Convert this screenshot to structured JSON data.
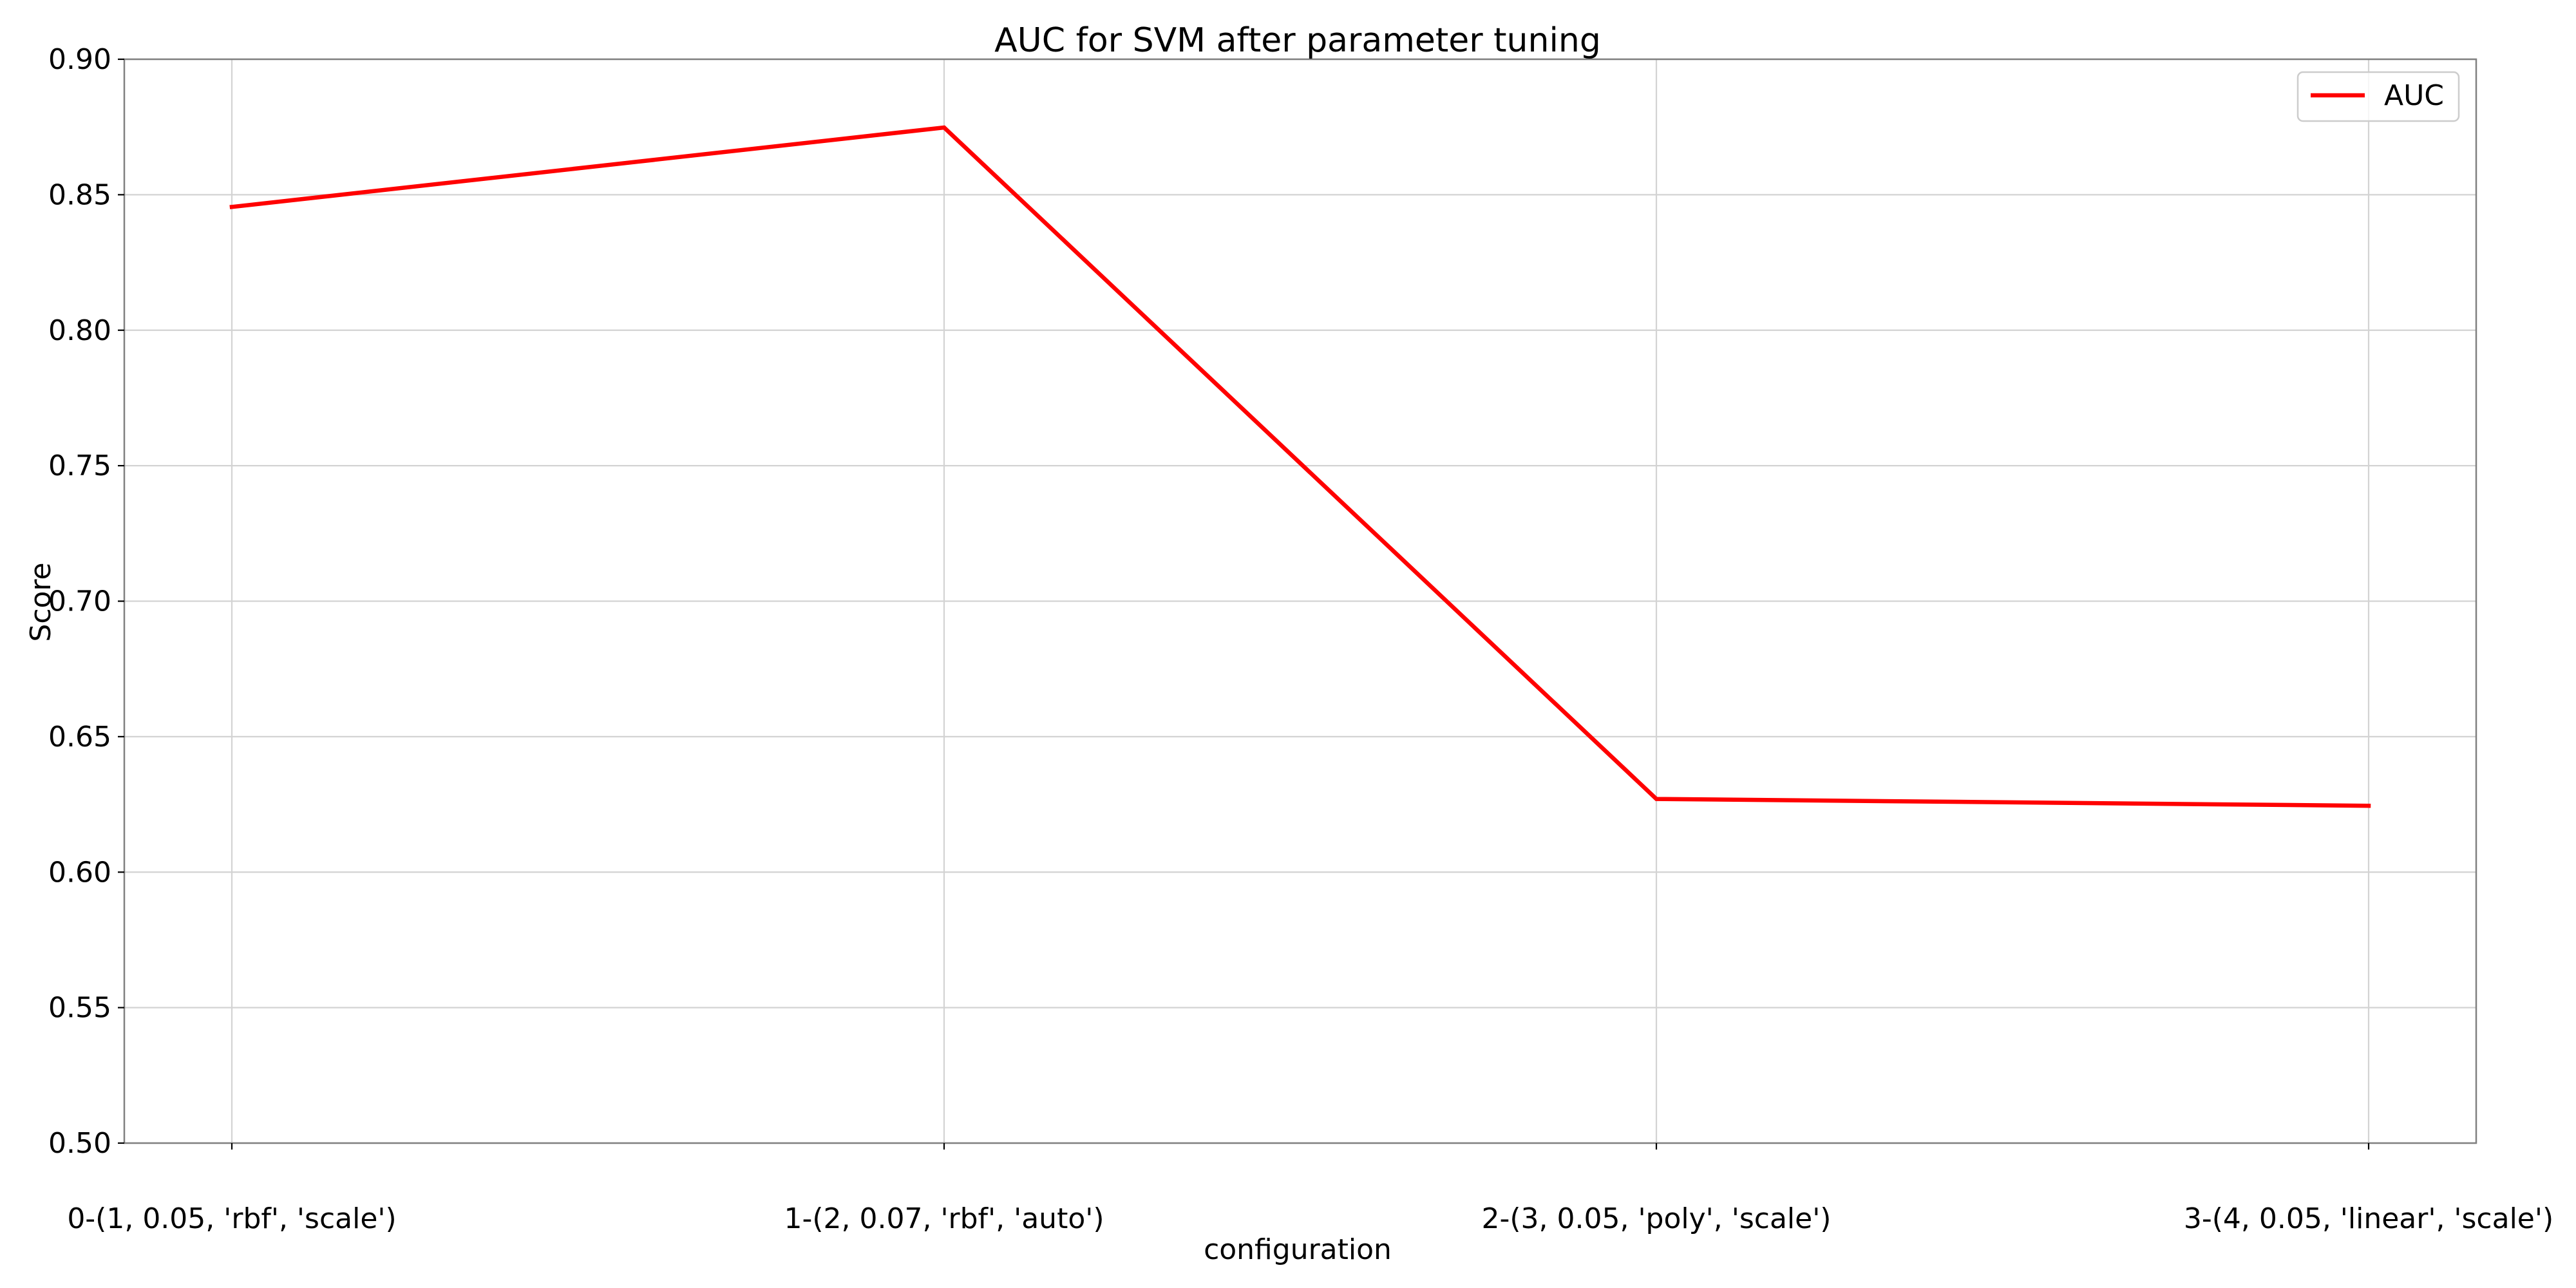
{
  "chart_data": {
    "type": "line",
    "title": "AUC for SVM after parameter tuning",
    "xlabel": "configuration",
    "ylabel": "Score",
    "categories": [
      "0-(1, 0.05, 'rbf', 'scale')",
      "1-(2, 0.07, 'rbf', 'auto')",
      "2-(3, 0.05, 'poly', 'scale')",
      "3-(4, 0.05, 'linear', 'scale')"
    ],
    "series": [
      {
        "name": "AUC",
        "values": [
          0.8455,
          0.8748,
          0.627,
          0.6245
        ],
        "color": "#ff0000"
      }
    ],
    "ylim": [
      0.5,
      0.9
    ],
    "yticks": [
      "0.50",
      "0.55",
      "0.60",
      "0.65",
      "0.70",
      "0.75",
      "0.80",
      "0.85",
      "0.90"
    ],
    "grid": true,
    "legend_position": "top-right"
  }
}
